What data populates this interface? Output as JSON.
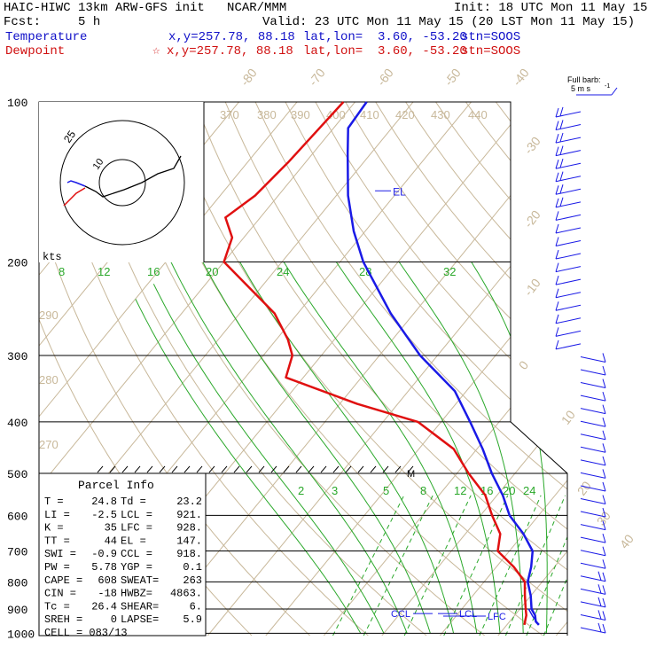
{
  "header": {
    "line1_left": "HAIC-HIWC 13km ARW-GFS init   NCAR/MMM",
    "line1_right": "Init: 18 UTC Mon 11 May 15",
    "line2_left": "Fcst:     5 h",
    "line2_right": "Valid: 23 UTC Mon 11 May 15 (20 LST Mon 11 May 15)",
    "temp_label": "Temperature",
    "temp_xy": "x,y=257.78, 88.18",
    "temp_latlon": "lat,lon=  3.60, -53.20",
    "temp_stn": "stn=SOOS",
    "dew_label": "Dewpoint",
    "dew_xy": "x,y=257.78, 88.18",
    "dew_latlon": "lat,lon=  3.60, -53.20",
    "dew_stn": "stn=SOOS",
    "barb_note_1": "Full barb:",
    "barb_note_2": "5 m s",
    "barb_note_3": "-1"
  },
  "chart_data": {
    "type": "line",
    "chart_kind": "Skew-T log-P",
    "y_axis_label": "",
    "x_axis_label": "",
    "pressure_ticks": [
      "100",
      "200",
      "300",
      "400",
      "500",
      "600",
      "700",
      "800",
      "900",
      "1000"
    ],
    "isotherm_labels": [
      "-80",
      "-70",
      "-60",
      "-50",
      "-40",
      "-30",
      "-20",
      "-10",
      "0",
      "10",
      "20",
      "30",
      "40"
    ],
    "theta_labels": [
      "370",
      "380",
      "390",
      "400",
      "410",
      "420",
      "430",
      "440",
      "290",
      "280",
      "270"
    ],
    "mixing_ratio_labels_200": [
      "8",
      "12",
      "16",
      "20",
      "24",
      "28",
      "32"
    ],
    "mixing_ratio_labels_550": [
      "2",
      "3",
      "5",
      "8",
      "12",
      "16",
      "20",
      "24"
    ],
    "series": [
      {
        "name": "Temperature",
        "color": "#1a1ae6",
        "points": [
          [
            100,
            -78
          ],
          [
            112,
            -77.5
          ],
          [
            125,
            -74
          ],
          [
            150,
            -68
          ],
          [
            175,
            -62
          ],
          [
            200,
            -56
          ],
          [
            250,
            -44
          ],
          [
            300,
            -33
          ],
          [
            350,
            -22
          ],
          [
            400,
            -15
          ],
          [
            450,
            -9
          ],
          [
            500,
            -4
          ],
          [
            550,
            1
          ],
          [
            600,
            5
          ],
          [
            650,
            10
          ],
          [
            700,
            14
          ],
          [
            750,
            16
          ],
          [
            800,
            17.5
          ],
          [
            850,
            20
          ],
          [
            900,
            22
          ],
          [
            925,
            23.5
          ],
          [
            950,
            24.5
          ],
          [
            964,
            25.5
          ]
        ]
      },
      {
        "name": "Dewpoint",
        "color": "#e01010",
        "points": [
          [
            100,
            -82
          ],
          [
            130,
            -83
          ],
          [
            150,
            -84
          ],
          [
            165,
            -86
          ],
          [
            180,
            -82
          ],
          [
            200,
            -80
          ],
          [
            250,
            -64
          ],
          [
            280,
            -58
          ],
          [
            300,
            -55
          ],
          [
            330,
            -53
          ],
          [
            370,
            -37
          ],
          [
            400,
            -24
          ],
          [
            450,
            -14
          ],
          [
            500,
            -8
          ],
          [
            550,
            -2
          ],
          [
            600,
            2
          ],
          [
            650,
            6
          ],
          [
            700,
            8
          ],
          [
            750,
            13
          ],
          [
            800,
            17
          ],
          [
            850,
            19
          ],
          [
            900,
            21
          ],
          [
            925,
            22
          ],
          [
            964,
            23
          ]
        ]
      }
    ],
    "annotations": [
      "EL",
      "M",
      "CCL",
      "LCL",
      "LFC"
    ],
    "hodograph": {
      "ring_labels": [
        "25",
        "10"
      ],
      "unit_label": "kts"
    },
    "wind_barbs": {
      "side": "right",
      "count": 41
    }
  },
  "parcel_info": {
    "title": "Parcel Info",
    "rows": [
      [
        "T   =",
        "24.8",
        "Td  =",
        "23.2"
      ],
      [
        "LI  =",
        "-2.5",
        "LCL =",
        "921."
      ],
      [
        "K   =",
        "35",
        "LFC =",
        "928."
      ],
      [
        "TT  =",
        "44",
        "EL  =",
        "147."
      ],
      [
        "SWI =",
        "-0.9",
        "CCL =",
        "918."
      ],
      [
        "PW  =",
        "5.78",
        "YGP =",
        "0.1"
      ],
      [
        "CAPE =",
        "608",
        "SWEAT=",
        "263"
      ],
      [
        "CIN  =",
        "-18",
        "HWBZ=",
        "4863."
      ],
      [
        "Tc   =",
        "26.4",
        "SHEAR=",
        "6."
      ],
      [
        "SREH =",
        "0",
        "LAPSE=",
        "5.9"
      ]
    ],
    "cell": "CELL = 083/13"
  }
}
